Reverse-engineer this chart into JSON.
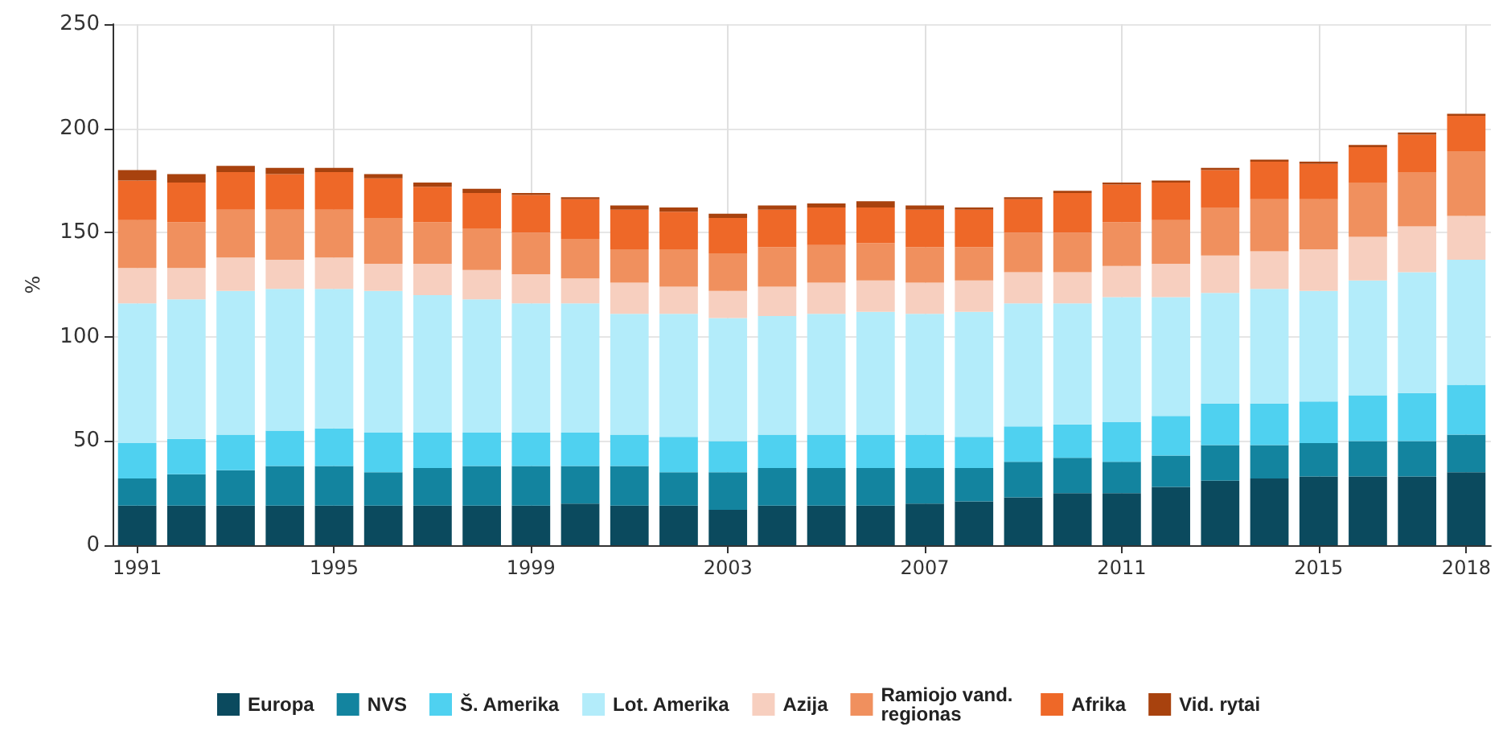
{
  "chart_data": {
    "type": "bar",
    "stacked": true,
    "ylabel": "%",
    "ylim": [
      0,
      250
    ],
    "yticks": [
      0,
      50,
      100,
      150,
      200,
      250
    ],
    "grid": true,
    "legend": "bottom",
    "categories": [
      "1991",
      null,
      null,
      null,
      "1995",
      null,
      null,
      null,
      "1999",
      null,
      null,
      null,
      "2003",
      null,
      null,
      null,
      "2007",
      null,
      null,
      null,
      "2011",
      null,
      null,
      null,
      "2015",
      null,
      null,
      "2018"
    ],
    "series": [
      {
        "name": "Europa",
        "color": "#0b4a5e",
        "values": [
          19,
          19,
          19,
          19,
          19,
          19,
          19,
          19,
          19,
          20,
          19,
          19,
          17,
          19,
          19,
          19,
          20,
          21,
          23,
          25,
          25,
          28,
          31,
          32,
          33,
          33,
          33,
          35
        ]
      },
      {
        "name": "NVS",
        "color": "#13849f",
        "values": [
          13,
          15,
          17,
          19,
          19,
          16,
          18,
          19,
          19,
          18,
          19,
          16,
          18,
          18,
          18,
          18,
          17,
          16,
          17,
          17,
          15,
          15,
          17,
          16,
          16,
          17,
          17,
          18
        ]
      },
      {
        "name": "Š. Amerika",
        "color": "#4fd1f0",
        "values": [
          17,
          17,
          17,
          17,
          18,
          19,
          17,
          16,
          16,
          16,
          15,
          17,
          15,
          16,
          16,
          16,
          16,
          15,
          17,
          16,
          19,
          19,
          20,
          20,
          20,
          22,
          23,
          24
        ]
      },
      {
        "name": "Lot. Amerika",
        "color": "#b3ecfa",
        "values": [
          67,
          67,
          69,
          68,
          67,
          68,
          66,
          64,
          62,
          62,
          58,
          59,
          59,
          57,
          58,
          59,
          58,
          60,
          59,
          58,
          60,
          57,
          53,
          55,
          53,
          55,
          58,
          60
        ]
      },
      {
        "name": "Azija",
        "color": "#f7cfbf",
        "values": [
          17,
          15,
          16,
          14,
          15,
          13,
          15,
          14,
          14,
          12,
          15,
          13,
          13,
          14,
          15,
          15,
          15,
          15,
          15,
          15,
          15,
          16,
          18,
          18,
          20,
          21,
          22,
          21
        ]
      },
      {
        "name": "Ramiojo vand. regionas",
        "color": "#f0905e",
        "values": [
          23,
          22,
          23,
          24,
          23,
          22,
          20,
          20,
          20,
          19,
          16,
          18,
          18,
          19,
          18,
          18,
          17,
          16,
          19,
          19,
          21,
          21,
          23,
          25,
          24,
          26,
          26,
          31
        ]
      },
      {
        "name": "Afrika",
        "color": "#ee6828",
        "values": [
          19,
          19,
          18,
          17,
          18,
          19,
          17,
          17,
          18,
          19,
          19,
          18,
          17,
          18,
          18,
          17,
          18,
          18,
          16,
          19,
          18,
          18,
          18,
          18,
          17,
          17,
          18,
          17
        ]
      },
      {
        "name": "Vid. rytai",
        "color": "#a8420e",
        "values": [
          5,
          4,
          3,
          3,
          2,
          2,
          2,
          2,
          1,
          1,
          2,
          2,
          2,
          2,
          2,
          3,
          2,
          1,
          1,
          1,
          1,
          1,
          1,
          1,
          1,
          1,
          1,
          1
        ]
      }
    ]
  }
}
